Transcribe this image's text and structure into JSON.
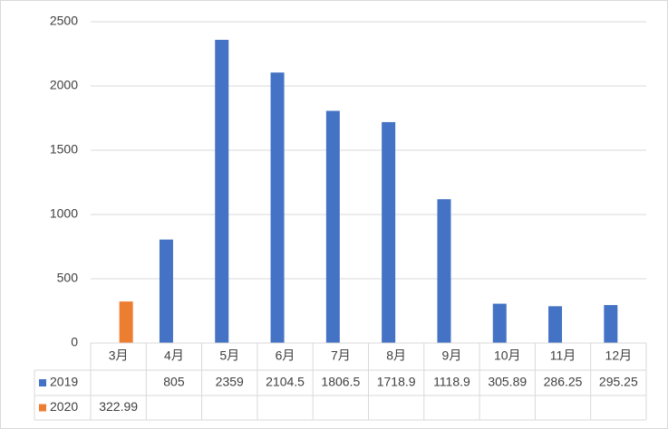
{
  "chart_data": {
    "type": "bar",
    "categories": [
      "3月",
      "4月",
      "5月",
      "6月",
      "7月",
      "8月",
      "9月",
      "10月",
      "11月",
      "12月"
    ],
    "series": [
      {
        "name": "2019",
        "color": "#4472c4",
        "values": [
          null,
          805,
          2359,
          2104.5,
          1806.5,
          1718.9,
          1118.9,
          305.89,
          286.25,
          295.25
        ]
      },
      {
        "name": "2020",
        "color": "#ed7d31",
        "values": [
          322.99,
          null,
          null,
          null,
          null,
          null,
          null,
          null,
          null,
          null
        ]
      }
    ],
    "ylim": [
      0,
      2500
    ],
    "yticks": [
      0,
      500,
      1000,
      1500,
      2000,
      2500
    ],
    "grid": true
  }
}
